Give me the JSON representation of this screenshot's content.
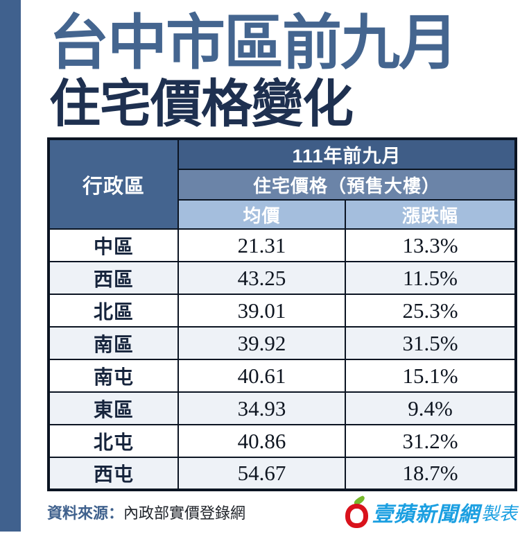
{
  "title": {
    "line1": "台中市區前九月",
    "line2": "住宅價格變化"
  },
  "table": {
    "header": {
      "region": "行政區",
      "period": "111年前九月",
      "category": "住宅價格（預售大樓）",
      "sub_avg": "均價",
      "sub_change": "漲跌幅"
    },
    "rows": [
      {
        "region": "中區",
        "avg": "21.31",
        "change": "13.3%"
      },
      {
        "region": "西區",
        "avg": "43.25",
        "change": "11.5%"
      },
      {
        "region": "北區",
        "avg": "39.01",
        "change": "25.3%"
      },
      {
        "region": "南區",
        "avg": "39.92",
        "change": "31.5%"
      },
      {
        "region": "南屯",
        "avg": "40.61",
        "change": "15.1%"
      },
      {
        "region": "東區",
        "avg": "34.93",
        "change": "9.4%"
      },
      {
        "region": "北屯",
        "avg": "40.86",
        "change": "31.2%"
      },
      {
        "region": "西屯",
        "avg": "54.67",
        "change": "18.7%"
      }
    ]
  },
  "footer": {
    "source_label": "資料來源：",
    "source_value": "內政部實價登錄網",
    "credit_name": "壹蘋新聞網",
    "credit_suffix": "製表",
    "logo_icon": "apple-logo-icon"
  },
  "colors": {
    "accent_bar": "#40618e",
    "title_blue": "#44658f",
    "title_navy": "#1e3050",
    "header_dark": "#3f5d87",
    "header_region": "#44648f",
    "header_mid": "#6b84a8",
    "header_light": "#a4bedd",
    "row_alt": "#eef2f7",
    "table_border": "#0b1422",
    "source_label_blue": "#3f618d",
    "credit_blue": "#1b9fe1",
    "apple_red": "#d9121c",
    "leaf_green": "#76b82a"
  }
}
